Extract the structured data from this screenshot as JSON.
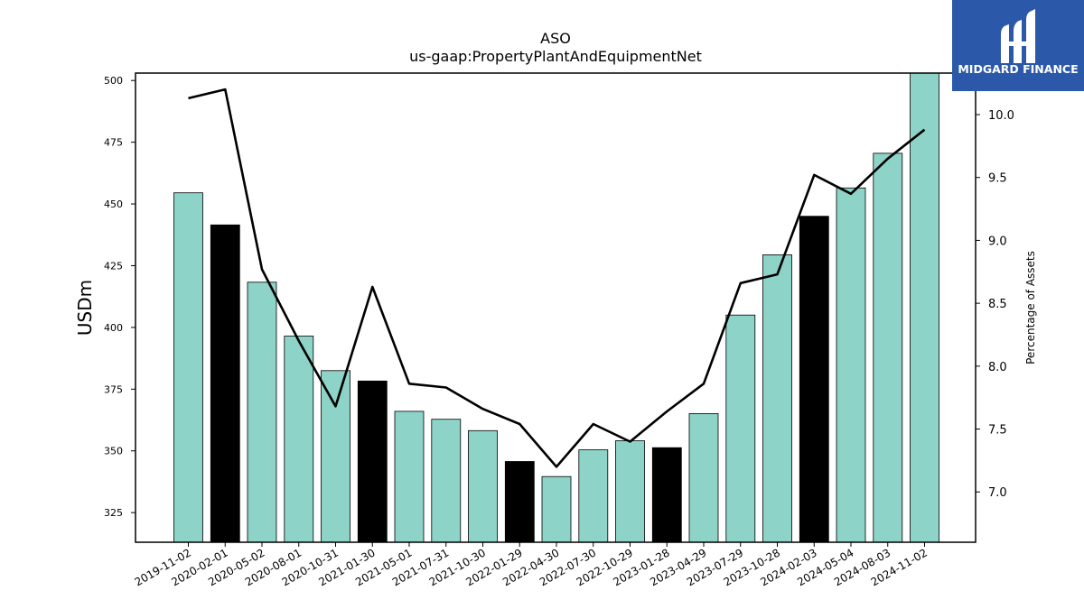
{
  "chart_data": {
    "type": "bar",
    "title": "ASO",
    "subtitle": "us-gaap:PropertyPlantAndEquipmentNet",
    "ylabel": "USDm",
    "y2label": "Percentage of Assets",
    "ylim": [
      313,
      503
    ],
    "y2lim": [
      6.6,
      10.33
    ],
    "yticks": [
      325,
      350,
      375,
      400,
      425,
      450,
      475,
      500
    ],
    "y2ticks": [
      "7.0",
      "7.5",
      "8.0",
      "8.5",
      "9.0",
      "9.5",
      "10.0"
    ],
    "categories": [
      "2019-11-02",
      "2020-02-01",
      "2020-05-02",
      "2020-08-01",
      "2020-10-31",
      "2021-01-30",
      "2021-05-01",
      "2021-07-31",
      "2021-10-30",
      "2022-01-29",
      "2022-04-30",
      "2022-07-30",
      "2022-10-29",
      "2023-01-28",
      "2023-04-29",
      "2023-07-29",
      "2023-10-28",
      "2024-02-03",
      "2024-05-04",
      "2024-08-03",
      "2024-11-02"
    ],
    "series": [
      {
        "kind": "bar",
        "values": [
          454.5,
          441.5,
          418.3,
          396.5,
          382.5,
          378.3,
          366.0,
          362.8,
          358.2,
          345.7,
          339.6,
          350.4,
          354.1,
          351.3,
          365.1,
          405.0,
          429.4,
          445.0,
          456.5,
          470.5,
          503.0
        ],
        "colors": [
          "#8dd3c7",
          "#000000",
          "#8dd3c7",
          "#8dd3c7",
          "#8dd3c7",
          "#000000",
          "#8dd3c7",
          "#8dd3c7",
          "#8dd3c7",
          "#000000",
          "#8dd3c7",
          "#8dd3c7",
          "#8dd3c7",
          "#000000",
          "#8dd3c7",
          "#8dd3c7",
          "#8dd3c7",
          "#000000",
          "#8dd3c7",
          "#8dd3c7",
          "#8dd3c7"
        ]
      },
      {
        "kind": "line",
        "axis": "right",
        "color": "#000000",
        "values": [
          10.13,
          10.2,
          8.77,
          8.2,
          7.68,
          8.63,
          7.86,
          7.83,
          7.66,
          7.54,
          7.2,
          7.54,
          7.4,
          7.64,
          7.86,
          8.66,
          8.73,
          9.52,
          9.37,
          9.65,
          9.88
        ]
      }
    ],
    "grid": false,
    "legend": "none"
  },
  "logo": {
    "text": "MIDGARD FINANCE",
    "bg_color": "#2b58a8"
  }
}
